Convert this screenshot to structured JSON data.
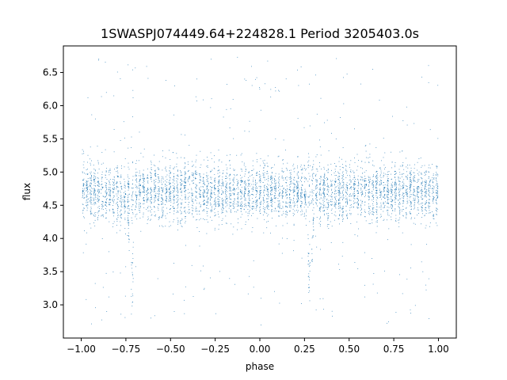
{
  "chart_data": {
    "type": "scatter",
    "title": "1SWASPJ074449.64+224828.1 Period 3205403.0s",
    "xlabel": "phase",
    "ylabel": "flux",
    "xlim": [
      -1.1,
      1.1
    ],
    "ylim": [
      2.5,
      6.9
    ],
    "grid": false,
    "legend": "none",
    "marker_color": "#1f77b4",
    "x_ticks": [
      {
        "value": -1.0,
        "label": "−1.00"
      },
      {
        "value": -0.75,
        "label": "−0.75"
      },
      {
        "value": -0.5,
        "label": "−0.50"
      },
      {
        "value": -0.25,
        "label": "−0.25"
      },
      {
        "value": 0.0,
        "label": "0.00"
      },
      {
        "value": 0.25,
        "label": "0.25"
      },
      {
        "value": 0.5,
        "label": "0.50"
      },
      {
        "value": 0.75,
        "label": "0.75"
      },
      {
        "value": 1.0,
        "label": "1.00"
      }
    ],
    "y_ticks": [
      {
        "value": 3.0,
        "label": "3.0"
      },
      {
        "value": 3.5,
        "label": "3.5"
      },
      {
        "value": 4.0,
        "label": "4.0"
      },
      {
        "value": 4.5,
        "label": "4.5"
      },
      {
        "value": 5.0,
        "label": "5.0"
      },
      {
        "value": 5.5,
        "label": "5.5"
      },
      {
        "value": 6.0,
        "label": "6.0"
      },
      {
        "value": 6.5,
        "label": "6.5"
      }
    ],
    "baseline_flux": 4.7,
    "dip_phases": [
      -0.72,
      0.28
    ],
    "dip_min_flux": 3.0,
    "outlier_flux_range": [
      2.7,
      6.75
    ]
  }
}
